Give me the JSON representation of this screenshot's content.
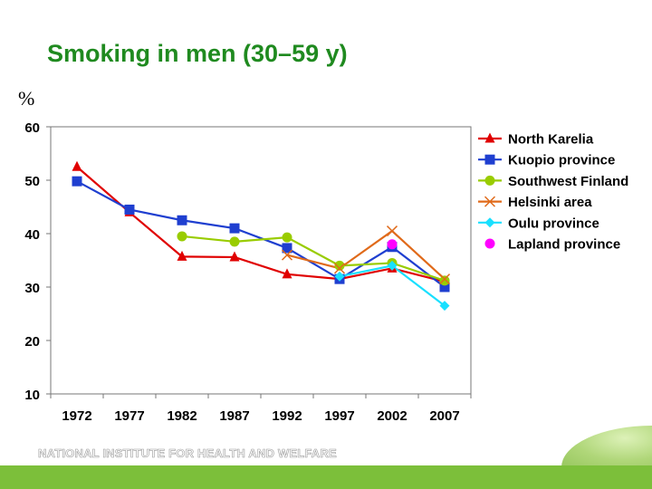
{
  "slide": {
    "title": "Smoking in men (30–59 y)",
    "unit_label": "%",
    "footer": "NATIONAL INSTITUTE FOR HEALTH AND WELFARE"
  },
  "colors": {
    "title": "#1f8a1f",
    "footer_bar": "#7cbf3a"
  },
  "chart_data": {
    "type": "line",
    "title": "Smoking in men (30–59 y)",
    "ylabel": "%",
    "xlabel": "",
    "categories": [
      "1972",
      "1977",
      "1982",
      "1987",
      "1992",
      "1997",
      "2002",
      "2007"
    ],
    "yticks": [
      "60",
      "50",
      "40",
      "30",
      "20",
      "10"
    ],
    "ylim": [
      10,
      60
    ],
    "grid": false,
    "legend_position": "right",
    "series": [
      {
        "name": "North Karelia",
        "color": "#e00000",
        "marker": "triangle",
        "values": [
          52.5,
          44.0,
          35.7,
          35.6,
          32.4,
          31.5,
          33.5,
          31.0
        ]
      },
      {
        "name": "Kuopio province",
        "color": "#1f3fd0",
        "marker": "square",
        "values": [
          49.8,
          44.5,
          42.5,
          41.0,
          37.3,
          31.5,
          37.5,
          30.0
        ]
      },
      {
        "name": "Southwest Finland",
        "color": "#99cc00",
        "marker": "circle",
        "values": [
          null,
          null,
          39.5,
          38.5,
          39.3,
          34.0,
          34.5,
          31.2
        ]
      },
      {
        "name": "Helsinki area",
        "color": "#e06a1a",
        "marker": "x",
        "values": [
          null,
          null,
          null,
          null,
          36.0,
          33.5,
          40.5,
          31.5
        ]
      },
      {
        "name": "Oulu province",
        "color": "#19e0ff",
        "marker": "diamond",
        "values": [
          null,
          null,
          null,
          null,
          null,
          32.0,
          34.0,
          26.5
        ]
      },
      {
        "name": "Lapland province",
        "color": "#ff00ff",
        "marker": "circle",
        "values": [
          null,
          null,
          null,
          null,
          null,
          null,
          38.0,
          null
        ]
      }
    ]
  }
}
